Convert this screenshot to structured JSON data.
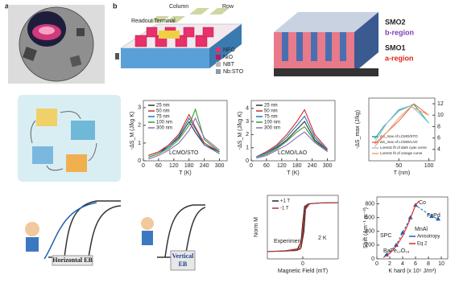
{
  "panel_a": {
    "label": "a"
  },
  "panel_b": {
    "label": "b",
    "terminal": "Readout Terminal",
    "column": "Column",
    "row": "Row",
    "legend": [
      {
        "name": "NFO",
        "color": "#e8306a"
      },
      {
        "name": "NiO",
        "color": "#c2185b"
      },
      {
        "name": "NBT",
        "color": "#b8b8b8"
      },
      {
        "name": "Nb:STO",
        "color": "#8a9aa8"
      }
    ]
  },
  "panel_c": {
    "top": "SMO2",
    "top_region": "b-region",
    "bottom": "SMO1",
    "bottom_region": "a-region"
  },
  "panel_e": {
    "left": "Horizontal EB",
    "right": "Vertical",
    "right_sub": "EB"
  },
  "plots": [
    {
      "type": "line",
      "xlabel": "T (K)",
      "ylabel": "-ΔS_M (J/kg K)",
      "notes": [
        "LCMO/STO"
      ],
      "xlim": [
        0,
        330
      ],
      "ylim": [
        0,
        3.4
      ],
      "xticks": [
        0,
        60,
        120,
        180,
        240,
        300
      ],
      "yticks": [
        0,
        1,
        2,
        3
      ],
      "series": [
        {
          "name": "25 nm",
          "color": "#333333",
          "x": [
            20,
            60,
            100,
            140,
            180,
            205,
            240,
            300
          ],
          "values": [
            0.3,
            0.5,
            0.8,
            1.3,
            2.2,
            1.6,
            0.9,
            0.5
          ]
        },
        {
          "name": "50 nm",
          "color": "#d62728",
          "x": [
            20,
            60,
            100,
            140,
            180,
            205,
            240,
            300
          ],
          "values": [
            0.3,
            0.5,
            0.9,
            1.5,
            2.6,
            1.9,
            1.0,
            0.5
          ]
        },
        {
          "name": "75 nm",
          "color": "#1f77b4",
          "x": [
            20,
            60,
            100,
            140,
            180,
            205,
            240,
            300
          ],
          "values": [
            0.2,
            0.4,
            0.8,
            1.4,
            2.4,
            1.8,
            0.9,
            0.4
          ]
        },
        {
          "name": "100 nm",
          "color": "#2ca02c",
          "x": [
            20,
            60,
            100,
            140,
            180,
            205,
            240,
            300
          ],
          "values": [
            0.2,
            0.4,
            0.7,
            1.2,
            2.0,
            2.9,
            1.2,
            0.5
          ]
        },
        {
          "name": "300 nm",
          "color": "#9467bd",
          "x": [
            20,
            60,
            100,
            140,
            180,
            205,
            240,
            300
          ],
          "values": [
            0.1,
            0.3,
            0.6,
            1.0,
            1.7,
            2.4,
            1.3,
            0.6
          ]
        }
      ]
    },
    {
      "type": "line",
      "xlabel": "T (K)",
      "ylabel": "-ΔS_M (J/kg K)",
      "notes": [
        "LCMO/LAO"
      ],
      "xlim": [
        0,
        330
      ],
      "ylim": [
        0,
        4.6
      ],
      "xticks": [
        0,
        60,
        120,
        180,
        240,
        300
      ],
      "yticks": [
        0,
        1,
        2,
        3,
        4
      ],
      "series": [
        {
          "name": "25 nm",
          "color": "#333333",
          "x": [
            20,
            60,
            100,
            140,
            180,
            210,
            250,
            300
          ],
          "values": [
            0.3,
            0.6,
            1.0,
            1.6,
            2.4,
            3.0,
            1.6,
            0.8
          ]
        },
        {
          "name": "50 nm",
          "color": "#d62728",
          "x": [
            20,
            60,
            100,
            140,
            180,
            210,
            250,
            300
          ],
          "values": [
            0.3,
            0.7,
            1.2,
            2.0,
            3.0,
            3.9,
            2.0,
            0.9
          ]
        },
        {
          "name": "75 nm",
          "color": "#1f77b4",
          "x": [
            20,
            60,
            100,
            140,
            180,
            210,
            250,
            300
          ],
          "values": [
            0.3,
            0.6,
            1.1,
            1.8,
            2.7,
            3.4,
            1.8,
            0.8
          ]
        },
        {
          "name": "100 nm",
          "color": "#2ca02c",
          "x": [
            20,
            60,
            100,
            140,
            180,
            210,
            250,
            300
          ],
          "values": [
            0.2,
            0.5,
            0.9,
            1.5,
            2.2,
            2.6,
            1.5,
            0.7
          ]
        },
        {
          "name": "300 nm",
          "color": "#9467bd",
          "x": [
            20,
            60,
            100,
            140,
            180,
            210,
            250,
            300
          ],
          "values": [
            0.2,
            0.4,
            0.8,
            1.2,
            1.8,
            2.2,
            1.4,
            0.7
          ]
        }
      ]
    },
    {
      "type": "line",
      "xlabel": "T (nm)",
      "ylabel": "-ΔS_max (J/kg)",
      "notes": [],
      "xlim": [
        0,
        110
      ],
      "ylim": [
        0,
        1
      ],
      "y2lim": [
        2,
        13
      ],
      "xticks": [
        50,
        100
      ],
      "yticks": [],
      "y2ticks": [
        4,
        6,
        8,
        10,
        12
      ],
      "series": [
        {
          "name": "ΔS_max of LCMO/STO",
          "color": "#2a9d8f",
          "x": [
            10,
            25,
            50,
            75,
            100
          ],
          "values": [
            0.35,
            0.55,
            0.8,
            0.9,
            0.6
          ]
        },
        {
          "name": "ΔS_max of LCMO/LAO",
          "color": "#e76f51",
          "x": [
            10,
            25,
            50,
            75,
            100
          ],
          "values": [
            5,
            6.5,
            9,
            12,
            10
          ],
          "axis": "y2"
        },
        {
          "name": "Lorentz fit of dark cyan curve",
          "color": "#8ecae6",
          "x": [
            10,
            30,
            50,
            70,
            90,
            100
          ],
          "values": [
            0.3,
            0.6,
            0.82,
            0.88,
            0.7,
            0.6
          ]
        },
        {
          "name": "Lorentz fit of orange curve",
          "color": "#f4a261",
          "x": [
            10,
            30,
            50,
            70,
            90,
            100
          ],
          "values": [
            4.5,
            7,
            9.5,
            11.5,
            10.5,
            10
          ],
          "axis": "y2"
        }
      ]
    },
    {
      "type": "line",
      "xlabel": "Magnetic Field (mT)",
      "ylabel": "Norm M",
      "notes": [
        "Experiment",
        "2 K"
      ],
      "xlim": [
        -1,
        1
      ],
      "ylim": [
        -1.3,
        1.3
      ],
      "xticks": [
        0
      ],
      "yticks": [],
      "series": [
        {
          "name": "+1 T",
          "color": "#222222",
          "x": [
            -1,
            -0.5,
            -0.15,
            -0.05,
            0,
            0.05,
            0.15,
            0.5,
            1,
            0.5,
            0.15,
            0.08,
            0.03,
            -0.05,
            -0.15,
            -0.5,
            -1
          ],
          "values": [
            -1,
            -0.98,
            -0.9,
            -0.6,
            0.2,
            0.85,
            0.95,
            0.99,
            1,
            0.99,
            0.95,
            0.8,
            -0.2,
            -0.85,
            -0.95,
            -0.98,
            -1
          ]
        },
        {
          "name": "-1 T",
          "color": "#a33",
          "x": [
            -1,
            -0.5,
            -0.12,
            -0.03,
            0.02,
            0.08,
            0.2,
            0.5,
            1,
            0.5,
            0.2,
            0.06,
            0,
            -0.07,
            -0.2,
            -0.5,
            -1
          ],
          "values": [
            -1,
            -0.97,
            -0.88,
            -0.5,
            0.3,
            0.88,
            0.96,
            0.99,
            1,
            0.99,
            0.96,
            0.7,
            -0.3,
            -0.9,
            -0.96,
            -0.97,
            -1
          ]
        }
      ]
    },
    {
      "type": "scatter",
      "xlabel": "K hard (x 10⁵ J/m³)",
      "ylabel": "Shift (Am⁻¹ m⁻³)",
      "notes": [
        "Co",
        "FePd",
        "MnAl",
        "SPC",
        "BaFe₁₂O₁₉"
      ],
      "xlim": [
        0,
        11
      ],
      "ylim": [
        0,
        900
      ],
      "xticks": [
        0,
        2,
        4,
        6,
        8,
        10
      ],
      "yticks": [
        0,
        200,
        400,
        600,
        800
      ],
      "series": [
        {
          "name": "Anisotropy",
          "color": "#1f5fb4",
          "marker": "triangle",
          "x": [
            1.5,
            3,
            4,
            5.2,
            6,
            8.5,
            9.5
          ],
          "values": [
            60,
            200,
            380,
            600,
            780,
            620,
            580
          ]
        },
        {
          "name": "Eq 2",
          "color": "#e0261d",
          "x": [
            1,
            2,
            3,
            4,
            5,
            6,
            6.5
          ],
          "values": [
            20,
            80,
            180,
            330,
            540,
            780,
            840
          ]
        }
      ]
    }
  ]
}
